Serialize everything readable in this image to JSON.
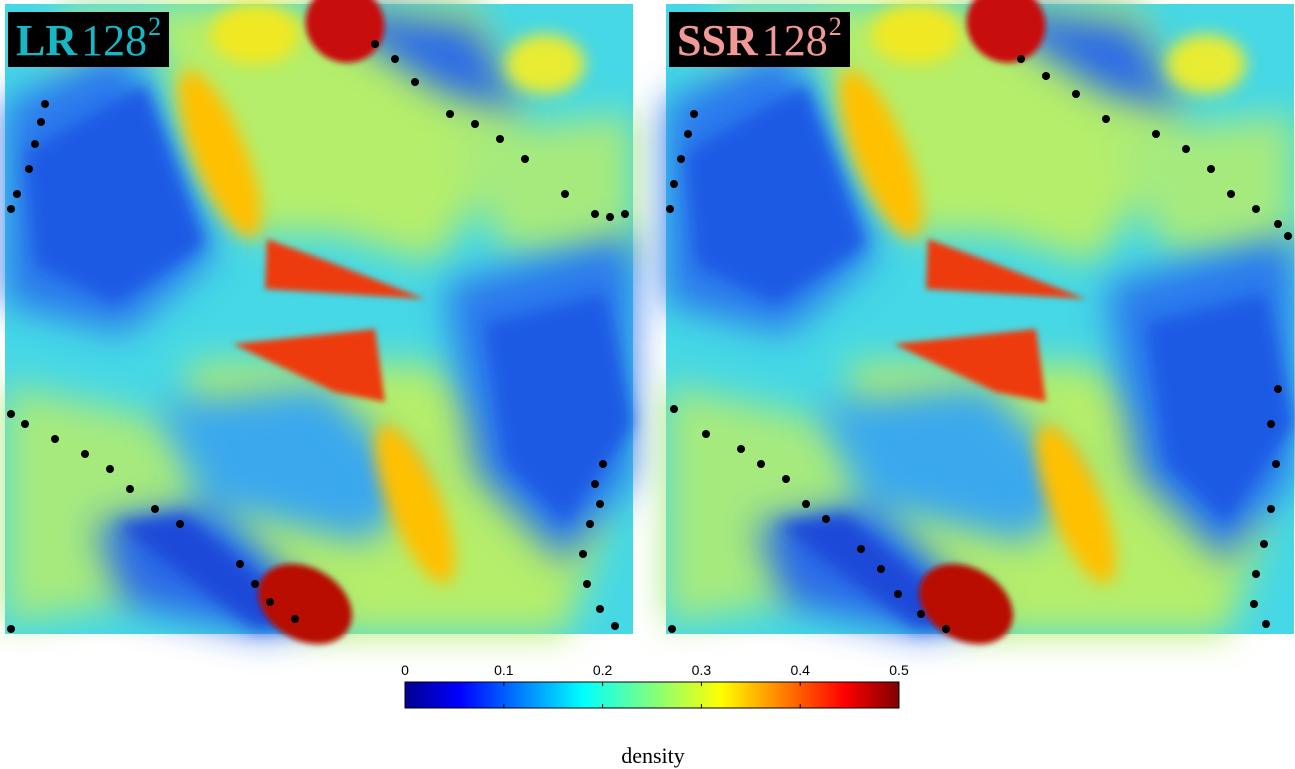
{
  "panels": [
    {
      "id": "lr",
      "label_bold": "LR",
      "label_num": "128",
      "label_exp": "2",
      "label_color": "#19b7c6"
    },
    {
      "id": "ssr",
      "label_bold": "SSR",
      "label_num": "128",
      "label_exp": "2",
      "label_color": "#f19995"
    }
  ],
  "colorbar": {
    "label": "density",
    "ticks": [
      "0",
      "0.1",
      "0.2",
      "0.3",
      "0.4",
      "0.5"
    ],
    "range": [
      0,
      0.5
    ],
    "colormap": "jet",
    "colormap_stops": [
      "#00008f",
      "#0000ff",
      "#00ffff",
      "#ffff00",
      "#ff0000",
      "#800000"
    ]
  },
  "colors": {
    "background_fill": "#3fd0e8",
    "markers": "#000000"
  }
}
